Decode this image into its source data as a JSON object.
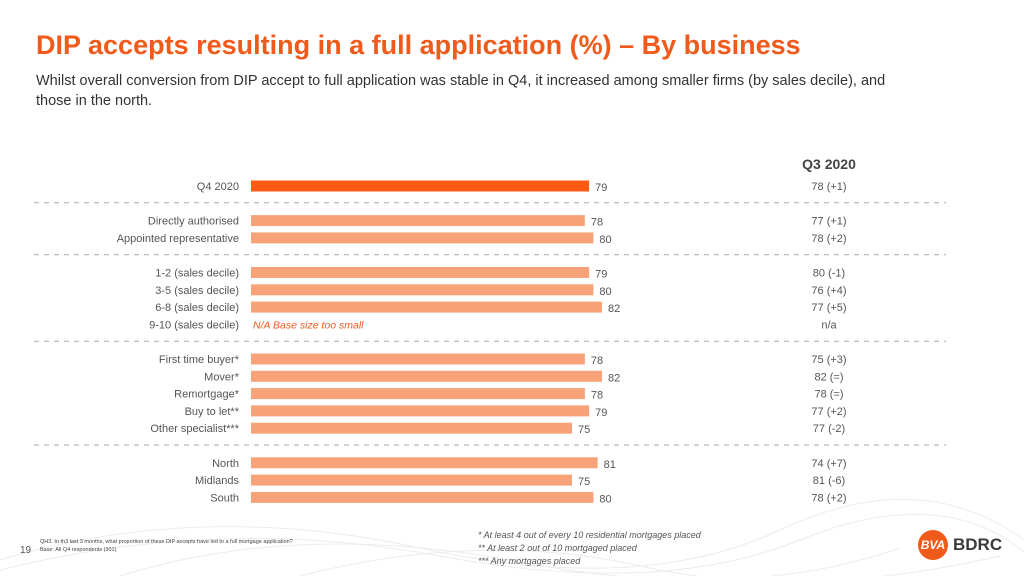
{
  "header": {
    "title": "DIP accepts resulting in a full application (%) – By business",
    "subtitle": "Whilst overall conversion from DIP accept to full application was stable in Q4, it increased among smaller firms (by sales decile), and those in the north."
  },
  "comparison_header": "Q3 2020",
  "colors": {
    "accent": "#ff5a14",
    "bar": "#f8a27a",
    "note": "#f05a1a",
    "divider": "#aaaaaa"
  },
  "chart_data": {
    "type": "bar",
    "orientation": "horizontal",
    "xlim": [
      0,
      100
    ],
    "groups": [
      {
        "rows": [
          {
            "label": "Q4 2020",
            "value": 79,
            "q3": "78 (+1)",
            "highlight": true
          }
        ]
      },
      {
        "rows": [
          {
            "label": "Directly authorised",
            "value": 78,
            "q3": "77 (+1)"
          },
          {
            "label": "Appointed representative",
            "value": 80,
            "q3": "78 (+2)"
          }
        ]
      },
      {
        "rows": [
          {
            "label": "1-2 (sales decile)",
            "value": 79,
            "q3": "80 (-1)"
          },
          {
            "label": "3-5 (sales decile)",
            "value": 80,
            "q3": "76 (+4)"
          },
          {
            "label": "6-8 (sales decile)",
            "value": 82,
            "q3": "77 (+5)"
          },
          {
            "label": "9-10 (sales decile)",
            "value": null,
            "note": "N/A Base size too small",
            "q3": "n/a"
          }
        ]
      },
      {
        "rows": [
          {
            "label": "First time buyer*",
            "value": 78,
            "q3": "75 (+3)"
          },
          {
            "label": "Mover*",
            "value": 82,
            "q3": "82 (=)"
          },
          {
            "label": "Remortgage*",
            "value": 78,
            "q3": "78 (=)"
          },
          {
            "label": "Buy to let**",
            "value": 79,
            "q3": "77 (+2)"
          },
          {
            "label": "Other specialist***",
            "value": 75,
            "q3": "77 (-2)"
          }
        ]
      },
      {
        "rows": [
          {
            "label": "North",
            "value": 81,
            "q3": "74 (+7)"
          },
          {
            "label": "Midlands",
            "value": 75,
            "q3": "81 (-6)"
          },
          {
            "label": "South",
            "value": 80,
            "q3": "78 (+2)"
          }
        ]
      }
    ]
  },
  "footnotes": {
    "line1": "* At least 4 out of every 10 residential mortgages placed",
    "line2": "** At least 2 out of 10 mortgaged placed",
    "line3": "*** Any mortgages placed"
  },
  "question": "QH3. In th3 last 3 months, what proportion of these DIP accepts have led to a full mortgage application?",
  "base": "Base: All Q4 respondents (301)",
  "page_number": "19",
  "logo": {
    "mark": "BVA",
    "text": "BDRC"
  }
}
